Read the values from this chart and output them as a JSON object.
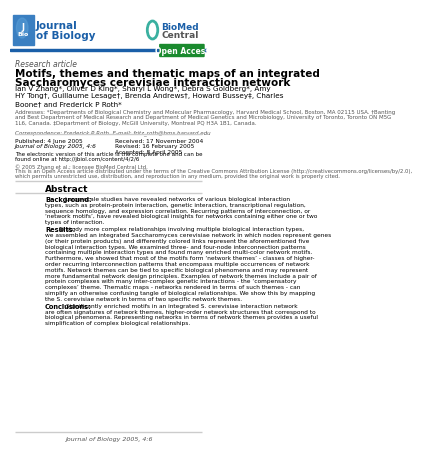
{
  "bg_color": "#ffffff",
  "header_bar_color": "#1a5fa8",
  "open_access_bg": "#1a8a2e",
  "journal_name_line1": "Journal",
  "journal_name_line2": "of Biology",
  "journal_logo_bg": "#3a7fc1",
  "biomed_central_text": "BioMed Central",
  "open_access_text": "Open Access",
  "research_article_text": "Research article",
  "title_line1": "Motifs, themes and thematic maps of an integrated",
  "title_line2": "Saccharomyces cerevisiae interaction network",
  "authors": "Ian V Zhang*, Oliver D King*, Sharyl L Wong*, Debra S Goldberg*, Amy\nHY Tong†, Guillaume Lesage†, Brenda Andrews†, Howard Bussey‡, Charles\nBoone† and Frederick P Roth*",
  "address_text": "Addresses: *Departments of Biological Chemistry and Molecular Pharmacology, Harvard Medical School, Boston, MA 02115 USA. †Banting\nand Best Department of Medical Research and Department of Medical Genetics and Microbiology, University of Toronto, Toronto ON M5G\n1L6, Canada. ‡Department of Biology, McGill University, Montreal PQ H3A 1B1, Canada.",
  "correspondence_text": "Correspondence: Frederick P Roth. E-mail: fritz_roth@hms.harvard.edu",
  "published_text": "Published: 4 June 2005",
  "journal_ref_text": "Journal of Biology 2005, 4:6",
  "electronic_text": "The electronic version of this article is the complete one and can be\nfound online at http://jbiol.com/content/4/2/6",
  "copyright_text": "© 2005 Zhang et al.; licensee BioMed Central Ltd.\nThis is an Open Access article distributed under the terms of the Creative Commons Attribution License (http://creativecommons.org/licenses/by/2.0),\nwhich permits unrestricted use, distribution, and reproduction in any medium, provided the original work is properly cited.",
  "received_text": "Received: 17 November 2004",
  "revised_text": "Revised: 16 February 2005",
  "accepted_text": "Accepted: 8 April 2005",
  "abstract_title": "Abstract",
  "background_label": "Background:",
  "background_text": "Large-scale studies have revealed networks of various biological interaction\ntypes, such as protein-protein interaction, genetic interaction, transcriptional regulation,\nsequence homology, and expression correlation. Recurring patterns of interconnection, or\n‘network motifs’, have revealed biological insights for networks containing either one or two\ntypes of interaction.",
  "results_label": "Results:",
  "results_text": "To study more complex relationships involving multiple biological interaction types,\nwe assembled an integrated Saccharomyces cerevisiae network in which nodes represent genes\n(or their protein products) and differently colored links represent the aforementioned five\nbiological interaction types. We examined three- and four-node interconnection patterns\ncontaining multiple interaction types and found many enriched multi-color network motifs.\nFurthermore, we showed that most of the motifs form ‘network themes’ - classes of higher-\norder recurring interconnection patterns that encompass multiple occurrences of network\nmotifs. Network themes can be tied to specific biological phenomena and may represent\nmore fundamental network design principles. Examples of network themes include a pair of\nprotein complexes with many inter-complex genetic interactions - the ‘compensatory\ncomplexes’ theme. Thematic maps - networks rendered in terms of such themes - can\nsimplify an otherwise confusing tangle of biological relationships. We show this by mapping\nthe S. cerevisiae network in terms of two specific network themes.",
  "conclusions_label": "Conclusions:",
  "conclusions_text": "Significantly enriched motifs in an integrated S. cerevisiae interaction network\nare often signatures of network themes, higher-order network structures that correspond to\nbiological phenomena. Representing networks in terms of network themes provides a useful\nsimplification of complex biological relationships.",
  "footer_text": "Journal of Biology 2005, 4:6",
  "divider_color": "#cccccc",
  "text_color": "#000000",
  "title_color": "#000000",
  "research_article_color": "#555555",
  "address_color": "#555555",
  "biomed_color_bio": "#1a5fa8",
  "biomed_color_med": "#cc0000"
}
